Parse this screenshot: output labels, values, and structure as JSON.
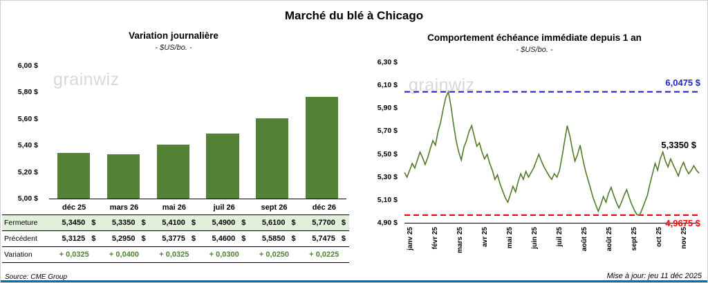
{
  "page": {
    "title": "Marché du blé à Chicago",
    "source": "Source: CME Group",
    "updated": "Mise à jour: jeu 11 déc 2025",
    "watermark": "grainwiz"
  },
  "colors": {
    "bar": "#548235",
    "line": "#4f7a28",
    "res": "#2323cc",
    "sup": "#ff0000",
    "closebg": "#e2efda",
    "vartext": "#538135"
  },
  "chart_data": [
    {
      "type": "bar",
      "title": "Variation journalière",
      "subtitle": "- $US/bo. -",
      "categories": [
        "déc 25",
        "mars 26",
        "mai 26",
        "juil 26",
        "sept 26",
        "déc 26"
      ],
      "values": [
        5.345,
        5.335,
        5.41,
        5.49,
        5.61,
        5.77
      ],
      "ylim": [
        5.0,
        6.0
      ],
      "yticks": [
        "6,00 $",
        "5,80 $",
        "5,60 $",
        "5,40 $",
        "5,20 $",
        "5,00 $"
      ],
      "grid": false,
      "legend": false
    },
    {
      "type": "line",
      "title": "Comportement échéance immédiate depuis 1 an",
      "subtitle": "- $US/bo. -",
      "ylim": [
        4.9,
        6.3
      ],
      "yticks": [
        "6,30 $",
        "6,10 $",
        "5,90 $",
        "5,70 $",
        "5,50 $",
        "5,30 $",
        "5,10 $",
        "4,90 $"
      ],
      "xticks": [
        "janv 25",
        "févr 25",
        "mars 25",
        "avr 25",
        "mai 25",
        "juin 25",
        "juil 25",
        "août 25",
        "août 25",
        "sept 25",
        "oct 25",
        "nov 25"
      ],
      "values": [
        5.34,
        5.3,
        5.36,
        5.42,
        5.38,
        5.45,
        5.52,
        5.47,
        5.41,
        5.47,
        5.55,
        5.62,
        5.58,
        5.7,
        5.78,
        5.9,
        6.0,
        6.0475,
        5.92,
        5.76,
        5.62,
        5.52,
        5.45,
        5.56,
        5.62,
        5.7,
        5.75,
        5.66,
        5.57,
        5.6,
        5.52,
        5.46,
        5.5,
        5.42,
        5.36,
        5.28,
        5.32,
        5.24,
        5.18,
        5.12,
        5.08,
        5.15,
        5.22,
        5.17,
        5.26,
        5.33,
        5.28,
        5.35,
        5.3,
        5.34,
        5.38,
        5.44,
        5.5,
        5.44,
        5.39,
        5.35,
        5.31,
        5.28,
        5.33,
        5.3,
        5.36,
        5.48,
        5.62,
        5.75,
        5.66,
        5.54,
        5.44,
        5.5,
        5.58,
        5.46,
        5.36,
        5.28,
        5.2,
        5.12,
        5.06,
        5.0,
        5.06,
        5.13,
        5.08,
        5.16,
        5.21,
        5.14,
        5.08,
        5.03,
        5.08,
        5.14,
        5.19,
        5.12,
        5.06,
        5.01,
        4.97,
        4.9675,
        5.02,
        5.08,
        5.14,
        5.24,
        5.33,
        5.42,
        5.36,
        5.46,
        5.52,
        5.44,
        5.39,
        5.46,
        5.41,
        5.36,
        5.31,
        5.38,
        5.43,
        5.37,
        5.33,
        5.36,
        5.4,
        5.36,
        5.335
      ],
      "grid": false,
      "legend": false,
      "annotations": {
        "resistance": {
          "value": 6.0475,
          "label": "6,0475 $"
        },
        "last": {
          "value": 5.335,
          "label": "5,3350 $"
        },
        "support": {
          "value": 4.9675,
          "label": "4,9675 $"
        }
      }
    }
  ],
  "table": {
    "header": [
      "déc 25",
      "mars 26",
      "mai 26",
      "juil 26",
      "sept 26",
      "déc 26"
    ],
    "rows": [
      {
        "label": "Fermeture",
        "values": [
          "5,3450",
          "5,3350",
          "5,4100",
          "5,4900",
          "5,6100",
          "5,7700"
        ],
        "currency": "$"
      },
      {
        "label": "Précédent",
        "values": [
          "5,3125",
          "5,2950",
          "5,3775",
          "5,4600",
          "5,5850",
          "5,7475"
        ],
        "currency": "$"
      },
      {
        "label": "Variation",
        "values": [
          "+ 0,0325",
          "+ 0,0400",
          "+ 0,0325",
          "+ 0,0300",
          "+ 0,0250",
          "+ 0,0225"
        ],
        "currency": ""
      }
    ]
  }
}
